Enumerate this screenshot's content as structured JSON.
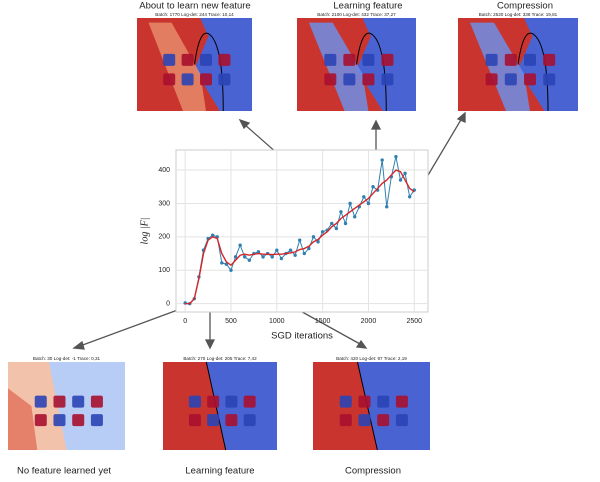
{
  "chart_data": {
    "type": "line",
    "xlabel": "SGD iterations",
    "ylabel": "log |F|",
    "x": [
      0,
      50,
      100,
      150,
      200,
      250,
      300,
      350,
      400,
      450,
      500,
      550,
      600,
      650,
      700,
      750,
      800,
      850,
      900,
      950,
      1000,
      1050,
      1100,
      1150,
      1200,
      1250,
      1300,
      1350,
      1400,
      1450,
      1500,
      1550,
      1600,
      1650,
      1700,
      1750,
      1800,
      1850,
      1900,
      1950,
      2000,
      2050,
      2100,
      2150,
      2200,
      2250,
      2300,
      2350,
      2400,
      2450,
      2500
    ],
    "series": [
      {
        "color": "#2f7fb0",
        "markers": true,
        "values": [
          2,
          0,
          15,
          80,
          160,
          195,
          205,
          200,
          122,
          118,
          100,
          140,
          175,
          140,
          130,
          150,
          155,
          140,
          150,
          140,
          160,
          135,
          150,
          160,
          145,
          190,
          150,
          165,
          200,
          185,
          215,
          220,
          240,
          225,
          275,
          240,
          300,
          260,
          290,
          320,
          300,
          350,
          340,
          430,
          290,
          380,
          440,
          370,
          390,
          320,
          340
        ]
      },
      {
        "color": "#d62728",
        "markers": false,
        "values": [
          0,
          0,
          15,
          75,
          150,
          190,
          200,
          195,
          150,
          125,
          115,
          130,
          145,
          148,
          145,
          148,
          150,
          148,
          148,
          147,
          148,
          148,
          150,
          152,
          155,
          162,
          165,
          172,
          185,
          192,
          205,
          215,
          230,
          240,
          255,
          265,
          275,
          285,
          295,
          305,
          315,
          330,
          345,
          360,
          370,
          385,
          400,
          395,
          370,
          345,
          335
        ]
      }
    ],
    "xlim": [
      -100,
      2650
    ],
    "ylim": [
      -25,
      460
    ],
    "xticks": [
      0,
      500,
      1000,
      1500,
      2000,
      2500
    ],
    "yticks": [
      0,
      100,
      200,
      300,
      400
    ],
    "grid": true
  },
  "panels": [
    {
      "caption": "About to learn new feature",
      "header": "Batch: 1770 Log-det: 244 Trace: 10,14"
    },
    {
      "caption": "Learning feature",
      "header": "Batch: 2100 Log-det: 432 Trace: 37,27"
    },
    {
      "caption": "Compression",
      "header": "Batch: 2520 Log-det: 338 Trace: 19,81"
    },
    {
      "caption": "No feature learned yet",
      "header": "Batch: 30 Log-det: -1 Trace: 0,31"
    },
    {
      "caption": "Learning feature",
      "header": "Batch: 270 Log-det: 205 Trace: 7,42"
    },
    {
      "caption": "Compression",
      "header": "Batch: 420 Log-det: 97 Trace: 2,19"
    }
  ]
}
